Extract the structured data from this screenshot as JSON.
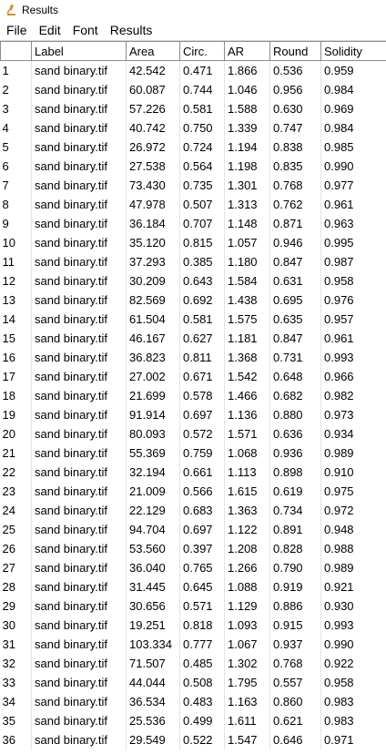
{
  "window": {
    "title": "Results",
    "icon": "microscope-icon"
  },
  "menu": [
    "File",
    "Edit",
    "Font",
    "Results"
  ],
  "columns": [
    "",
    "Label",
    "Area",
    "Circ.",
    "AR",
    "Round",
    "Solidity"
  ],
  "rows": [
    [
      "1",
      "sand binary.tif",
      "42.542",
      "0.471",
      "1.866",
      "0.536",
      "0.959"
    ],
    [
      "2",
      "sand binary.tif",
      "60.087",
      "0.744",
      "1.046",
      "0.956",
      "0.984"
    ],
    [
      "3",
      "sand binary.tif",
      "57.226",
      "0.581",
      "1.588",
      "0.630",
      "0.969"
    ],
    [
      "4",
      "sand binary.tif",
      "40.742",
      "0.750",
      "1.339",
      "0.747",
      "0.984"
    ],
    [
      "5",
      "sand binary.tif",
      "26.972",
      "0.724",
      "1.194",
      "0.838",
      "0.985"
    ],
    [
      "6",
      "sand binary.tif",
      "27.538",
      "0.564",
      "1.198",
      "0.835",
      "0.990"
    ],
    [
      "7",
      "sand binary.tif",
      "73.430",
      "0.735",
      "1.301",
      "0.768",
      "0.977"
    ],
    [
      "8",
      "sand binary.tif",
      "47.978",
      "0.507",
      "1.313",
      "0.762",
      "0.961"
    ],
    [
      "9",
      "sand binary.tif",
      "36.184",
      "0.707",
      "1.148",
      "0.871",
      "0.963"
    ],
    [
      "10",
      "sand binary.tif",
      "35.120",
      "0.815",
      "1.057",
      "0.946",
      "0.995"
    ],
    [
      "11",
      "sand binary.tif",
      "37.293",
      "0.385",
      "1.180",
      "0.847",
      "0.987"
    ],
    [
      "12",
      "sand binary.tif",
      "30.209",
      "0.643",
      "1.584",
      "0.631",
      "0.958"
    ],
    [
      "13",
      "sand binary.tif",
      "82.569",
      "0.692",
      "1.438",
      "0.695",
      "0.976"
    ],
    [
      "14",
      "sand binary.tif",
      "61.504",
      "0.581",
      "1.575",
      "0.635",
      "0.957"
    ],
    [
      "15",
      "sand binary.tif",
      "46.167",
      "0.627",
      "1.181",
      "0.847",
      "0.961"
    ],
    [
      "16",
      "sand binary.tif",
      "36.823",
      "0.811",
      "1.368",
      "0.731",
      "0.993"
    ],
    [
      "17",
      "sand binary.tif",
      "27.002",
      "0.671",
      "1.542",
      "0.648",
      "0.966"
    ],
    [
      "18",
      "sand binary.tif",
      "21.699",
      "0.578",
      "1.466",
      "0.682",
      "0.982"
    ],
    [
      "19",
      "sand binary.tif",
      "91.914",
      "0.697",
      "1.136",
      "0.880",
      "0.973"
    ],
    [
      "20",
      "sand binary.tif",
      "80.093",
      "0.572",
      "1.571",
      "0.636",
      "0.934"
    ],
    [
      "21",
      "sand binary.tif",
      "55.369",
      "0.759",
      "1.068",
      "0.936",
      "0.989"
    ],
    [
      "22",
      "sand binary.tif",
      "32.194",
      "0.661",
      "1.113",
      "0.898",
      "0.910"
    ],
    [
      "23",
      "sand binary.tif",
      "21.009",
      "0.566",
      "1.615",
      "0.619",
      "0.975"
    ],
    [
      "24",
      "sand binary.tif",
      "22.129",
      "0.683",
      "1.363",
      "0.734",
      "0.972"
    ],
    [
      "25",
      "sand binary.tif",
      "94.704",
      "0.697",
      "1.122",
      "0.891",
      "0.948"
    ],
    [
      "26",
      "sand binary.tif",
      "53.560",
      "0.397",
      "1.208",
      "0.828",
      "0.988"
    ],
    [
      "27",
      "sand binary.tif",
      "36.040",
      "0.765",
      "1.266",
      "0.790",
      "0.989"
    ],
    [
      "28",
      "sand binary.tif",
      "31.445",
      "0.645",
      "1.088",
      "0.919",
      "0.921"
    ],
    [
      "29",
      "sand binary.tif",
      "30.656",
      "0.571",
      "1.129",
      "0.886",
      "0.930"
    ],
    [
      "30",
      "sand binary.tif",
      "19.251",
      "0.818",
      "1.093",
      "0.915",
      "0.993"
    ],
    [
      "31",
      "sand binary.tif",
      "103.334",
      "0.777",
      "1.067",
      "0.937",
      "0.990"
    ],
    [
      "32",
      "sand binary.tif",
      "71.507",
      "0.485",
      "1.302",
      "0.768",
      "0.922"
    ],
    [
      "33",
      "sand binary.tif",
      "44.044",
      "0.508",
      "1.795",
      "0.557",
      "0.958"
    ],
    [
      "34",
      "sand binary.tif",
      "36.534",
      "0.483",
      "1.163",
      "0.860",
      "0.983"
    ],
    [
      "35",
      "sand binary.tif",
      "25.536",
      "0.499",
      "1.611",
      "0.621",
      "0.983"
    ],
    [
      "36",
      "sand binary.tif",
      "29.549",
      "0.522",
      "1.547",
      "0.646",
      "0.971"
    ]
  ]
}
